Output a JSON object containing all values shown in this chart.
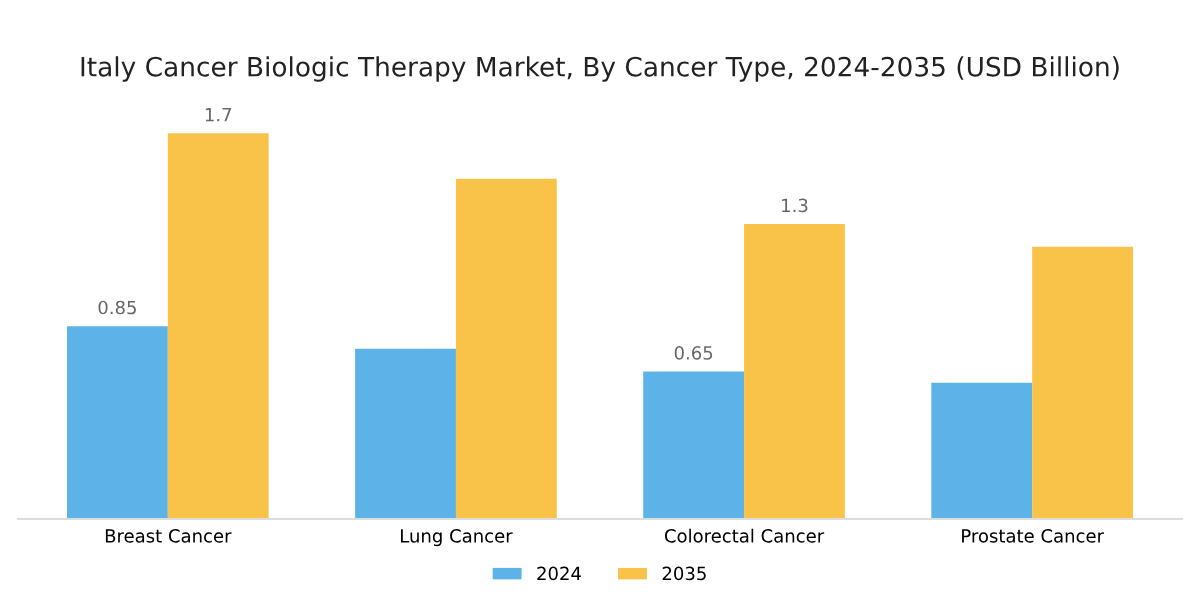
{
  "chart_data": {
    "type": "bar",
    "title": "Italy Cancer Biologic Therapy Market, By Cancer Type, 2024-2035 (USD Billion)",
    "categories": [
      "Breast Cancer",
      "Lung Cancer",
      "Colorectal Cancer",
      "Prostate Cancer"
    ],
    "series": [
      {
        "name": "2024",
        "color": "#5db3e8",
        "values": [
          0.85,
          0.75,
          0.65,
          0.6
        ],
        "value_labels": [
          "0.85",
          null,
          "0.65",
          null
        ]
      },
      {
        "name": "2035",
        "color": "#f9c34a",
        "values": [
          1.7,
          1.5,
          1.3,
          1.2
        ],
        "value_labels": [
          "1.7",
          null,
          "1.3",
          null
        ]
      }
    ],
    "tick_labels": "x",
    "grid": false,
    "legend": "bottom"
  }
}
